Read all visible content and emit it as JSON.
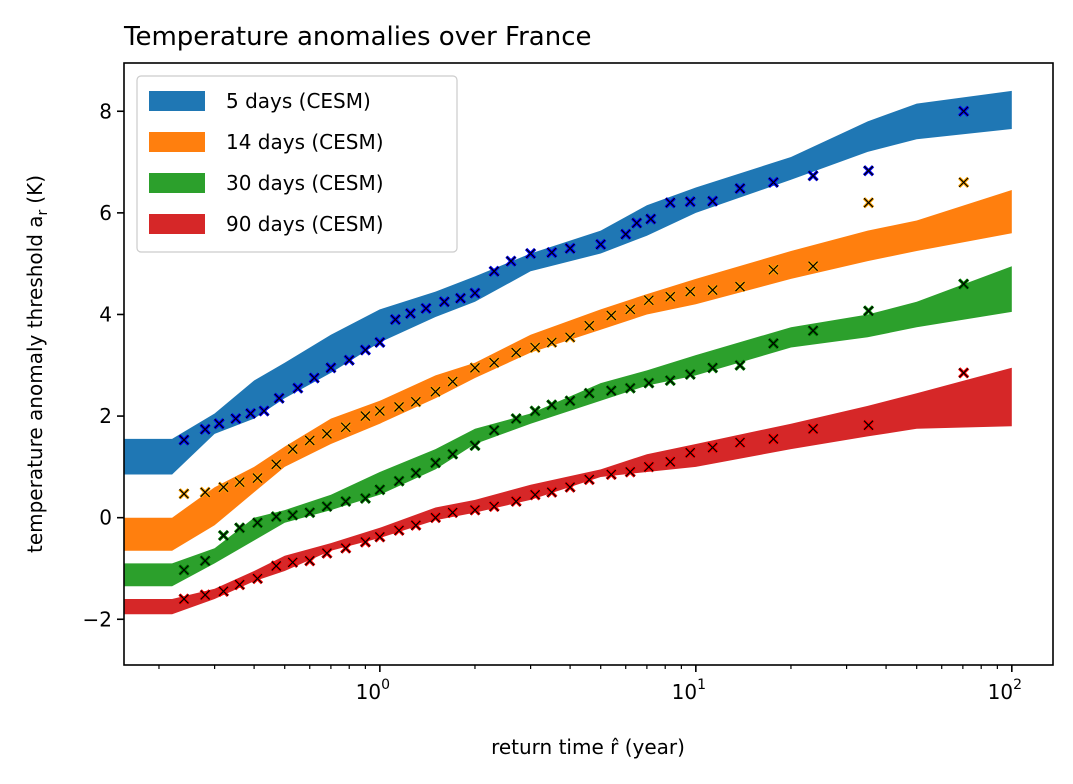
{
  "chart_data": {
    "type": "area",
    "title": "Temperature anomalies over France",
    "xlabel": "return time r̂ (year)",
    "ylabel": "temperature anomaly threshold a",
    "ylabel_sub": "r",
    "ylabel_unit": "(K)",
    "xscale": "log",
    "xlim": [
      0.155,
      135
    ],
    "ylim": [
      -2.9,
      8.95
    ],
    "grid": false,
    "legend_position": "top-left",
    "x_ticks": [
      {
        "value": 1,
        "base": "10",
        "exp": "0"
      },
      {
        "value": 10,
        "base": "10",
        "exp": "1"
      },
      {
        "value": 100,
        "base": "10",
        "exp": "2"
      }
    ],
    "y_ticks": [
      {
        "value": -2,
        "label": "−2"
      },
      {
        "value": 0,
        "label": "0"
      },
      {
        "value": 2,
        "label": "2"
      },
      {
        "value": 4,
        "label": "4"
      },
      {
        "value": 6,
        "label": "6"
      },
      {
        "value": 8,
        "label": "8"
      }
    ],
    "series": [
      {
        "name": "5 days (CESM)",
        "band_color": "#1f77b4",
        "marker_color": "#0000ff",
        "band_x": [
          0.155,
          0.22,
          0.3,
          0.4,
          0.5,
          0.7,
          1.0,
          1.5,
          2.0,
          3.0,
          5.0,
          7.0,
          10,
          20,
          35,
          50,
          100
        ],
        "band_lower": [
          0.85,
          0.85,
          1.65,
          1.95,
          2.35,
          2.85,
          3.45,
          3.95,
          4.25,
          4.85,
          5.2,
          5.55,
          6.0,
          6.65,
          7.2,
          7.45,
          7.65
        ],
        "band_upper": [
          1.55,
          1.55,
          2.05,
          2.7,
          3.05,
          3.6,
          4.1,
          4.45,
          4.75,
          5.2,
          5.65,
          6.15,
          6.5,
          7.1,
          7.8,
          8.15,
          8.4
        ],
        "points_x": [
          0.24,
          0.28,
          0.31,
          0.35,
          0.39,
          0.43,
          0.48,
          0.55,
          0.62,
          0.7,
          0.8,
          0.9,
          1.0,
          1.12,
          1.25,
          1.4,
          1.6,
          1.8,
          2.0,
          2.3,
          2.6,
          3.0,
          3.5,
          4.0,
          5.0,
          6.0,
          6.5,
          7.2,
          8.3,
          9.6,
          11.3,
          13.8,
          17.6,
          23.5,
          35.2,
          70.4
        ],
        "points_y": [
          1.53,
          1.74,
          1.85,
          1.95,
          2.05,
          2.1,
          2.35,
          2.55,
          2.75,
          2.95,
          3.1,
          3.3,
          3.45,
          3.9,
          4.02,
          4.12,
          4.25,
          4.32,
          4.42,
          4.85,
          5.05,
          5.2,
          5.22,
          5.3,
          5.38,
          5.58,
          5.8,
          5.88,
          6.2,
          6.22,
          6.23,
          6.48,
          6.6,
          6.73,
          6.83,
          8.0
        ]
      },
      {
        "name": "14 days (CESM)",
        "band_color": "#ff7f0e",
        "marker_color": "#ffa500",
        "band_x": [
          0.155,
          0.22,
          0.3,
          0.4,
          0.5,
          0.7,
          1.0,
          1.5,
          2.0,
          3.0,
          5.0,
          7.0,
          10,
          20,
          35,
          50,
          100
        ],
        "band_lower": [
          -0.65,
          -0.65,
          -0.15,
          0.5,
          1.0,
          1.45,
          1.85,
          2.35,
          2.75,
          3.25,
          3.7,
          4.0,
          4.2,
          4.7,
          5.05,
          5.25,
          5.6
        ],
        "band_upper": [
          0.0,
          0.0,
          0.6,
          1.0,
          1.4,
          1.95,
          2.3,
          2.8,
          3.05,
          3.6,
          4.1,
          4.4,
          4.7,
          5.25,
          5.65,
          5.85,
          6.45
        ],
        "points_x": [
          0.24,
          0.28,
          0.32,
          0.36,
          0.41,
          0.47,
          0.53,
          0.6,
          0.68,
          0.78,
          0.9,
          1.0,
          1.15,
          1.3,
          1.5,
          1.7,
          2.0,
          2.3,
          2.7,
          3.1,
          3.5,
          4.0,
          4.6,
          5.4,
          6.2,
          7.1,
          8.3,
          9.6,
          11.3,
          13.8,
          17.6,
          23.5,
          35.2,
          70.4
        ],
        "points_y": [
          0.47,
          0.5,
          0.6,
          0.7,
          0.78,
          1.05,
          1.35,
          1.52,
          1.65,
          1.78,
          2.0,
          2.1,
          2.18,
          2.28,
          2.48,
          2.68,
          2.95,
          3.05,
          3.25,
          3.35,
          3.45,
          3.55,
          3.78,
          3.98,
          4.1,
          4.28,
          4.35,
          4.45,
          4.48,
          4.55,
          4.88,
          4.95,
          6.2,
          6.6
        ]
      },
      {
        "name": "30 days (CESM)",
        "band_color": "#2ca02c",
        "marker_color": "#008000",
        "band_x": [
          0.155,
          0.22,
          0.3,
          0.4,
          0.5,
          0.7,
          1.0,
          1.5,
          2.0,
          3.0,
          5.0,
          7.0,
          10,
          20,
          35,
          50,
          100
        ],
        "band_lower": [
          -1.35,
          -1.35,
          -0.9,
          -0.45,
          -0.1,
          0.15,
          0.45,
          0.95,
          1.45,
          1.85,
          2.3,
          2.6,
          2.8,
          3.35,
          3.55,
          3.75,
          4.05
        ],
        "band_upper": [
          -0.9,
          -0.9,
          -0.6,
          0.0,
          0.15,
          0.45,
          0.9,
          1.35,
          1.75,
          2.05,
          2.65,
          2.9,
          3.2,
          3.75,
          4.0,
          4.25,
          4.95
        ],
        "points_x": [
          0.24,
          0.28,
          0.32,
          0.36,
          0.41,
          0.47,
          0.53,
          0.6,
          0.68,
          0.78,
          0.9,
          1.0,
          1.15,
          1.3,
          1.5,
          1.7,
          2.0,
          2.3,
          2.7,
          3.1,
          3.5,
          4.0,
          4.6,
          5.4,
          6.2,
          7.1,
          8.3,
          9.6,
          11.3,
          13.8,
          17.6,
          23.5,
          35.2,
          70.4
        ],
        "points_y": [
          -1.03,
          -0.85,
          -0.35,
          -0.2,
          -0.1,
          0.02,
          0.05,
          0.1,
          0.22,
          0.32,
          0.38,
          0.55,
          0.72,
          0.88,
          1.08,
          1.25,
          1.42,
          1.72,
          1.95,
          2.1,
          2.22,
          2.3,
          2.45,
          2.5,
          2.55,
          2.65,
          2.7,
          2.82,
          2.95,
          3.0,
          3.43,
          3.68,
          4.07,
          4.6
        ]
      },
      {
        "name": "90 days (CESM)",
        "band_color": "#d62728",
        "marker_color": "#ff0000",
        "band_x": [
          0.155,
          0.22,
          0.3,
          0.4,
          0.5,
          0.7,
          1.0,
          1.5,
          2.0,
          3.0,
          5.0,
          7.0,
          10,
          20,
          35,
          50,
          100
        ],
        "band_lower": [
          -1.9,
          -1.9,
          -1.6,
          -1.25,
          -1.05,
          -0.65,
          -0.4,
          -0.05,
          0.1,
          0.35,
          0.8,
          0.9,
          1.0,
          1.35,
          1.6,
          1.75,
          1.8
        ],
        "band_upper": [
          -1.6,
          -1.6,
          -1.4,
          -1.05,
          -0.75,
          -0.5,
          -0.2,
          0.2,
          0.35,
          0.65,
          0.95,
          1.25,
          1.45,
          1.85,
          2.2,
          2.45,
          2.95
        ],
        "points_x": [
          0.24,
          0.28,
          0.32,
          0.36,
          0.41,
          0.47,
          0.53,
          0.6,
          0.68,
          0.78,
          0.9,
          1.0,
          1.15,
          1.3,
          1.5,
          1.7,
          2.0,
          2.3,
          2.7,
          3.1,
          3.5,
          4.0,
          4.6,
          5.4,
          6.2,
          7.1,
          8.3,
          9.6,
          11.3,
          13.8,
          17.6,
          23.5,
          35.2,
          70.4
        ],
        "points_y": [
          -1.6,
          -1.52,
          -1.45,
          -1.32,
          -1.2,
          -0.95,
          -0.88,
          -0.85,
          -0.7,
          -0.6,
          -0.48,
          -0.38,
          -0.25,
          -0.15,
          0.0,
          0.1,
          0.15,
          0.22,
          0.32,
          0.45,
          0.5,
          0.6,
          0.75,
          0.85,
          0.9,
          1.0,
          1.1,
          1.28,
          1.38,
          1.48,
          1.55,
          1.75,
          1.82,
          2.85
        ]
      }
    ]
  }
}
